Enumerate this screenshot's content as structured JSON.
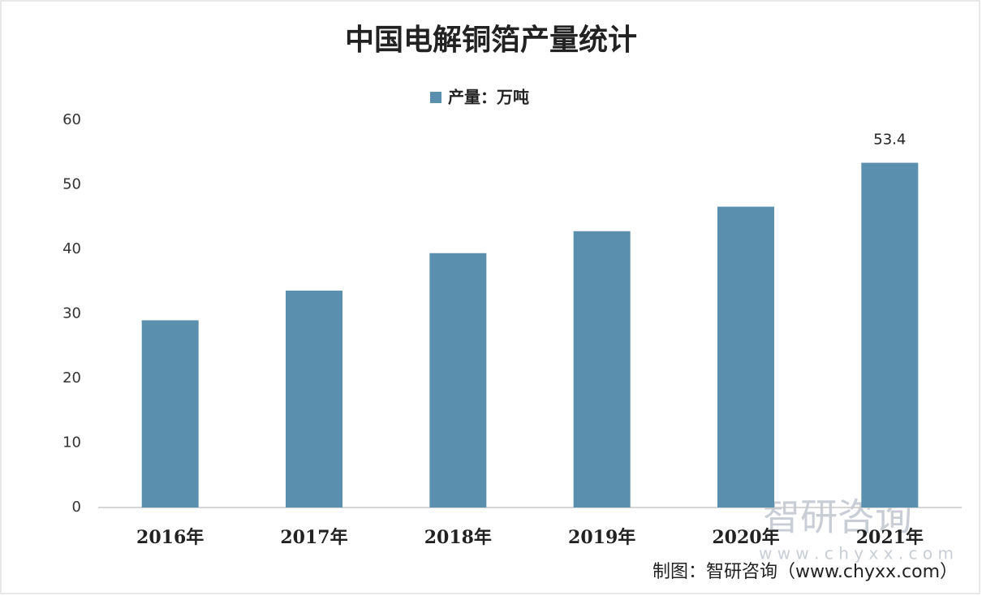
{
  "chart_data": {
    "type": "bar",
    "title": "中国电解铜箔产量统计",
    "categories": [
      "2016年",
      "2017年",
      "2018年",
      "2019年",
      "2020年",
      "2021年"
    ],
    "series": [
      {
        "name": "产量：万吨",
        "color": "#5a8fae",
        "values": [
          29.0,
          33.6,
          39.4,
          42.8,
          46.6,
          53.4
        ],
        "value_labels": [
          null,
          null,
          null,
          null,
          null,
          "53.4"
        ]
      }
    ],
    "ylim": [
      0,
      60
    ],
    "yticks": [
      0,
      10,
      20,
      30,
      40,
      50,
      60
    ],
    "grid": false,
    "legend": "top",
    "source": "制图：智研咨询（www.chyxx.com）",
    "watermark": {
      "name": "智研咨询",
      "url": "w w w . c h y x x . c o m"
    }
  }
}
